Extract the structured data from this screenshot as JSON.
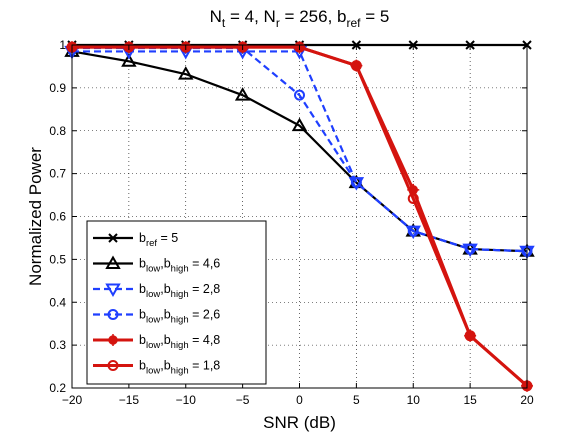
{
  "chart_data": {
    "type": "line",
    "title": {
      "parts": [
        {
          "text": "N",
          "sub": "t",
          "after": " = 4, "
        },
        {
          "text": "N",
          "sub": "r",
          "after": " = 256, "
        },
        {
          "text": "b",
          "sub": "ref",
          "after": " = 5"
        }
      ]
    },
    "xlabel": "SNR (dB)",
    "ylabel": "Normalized Power",
    "xlim": [
      -20,
      20
    ],
    "ylim": [
      0.2,
      1.0
    ],
    "x_ticks": [
      -20,
      -15,
      -10,
      -5,
      0,
      5,
      10,
      15,
      20
    ],
    "y_ticks": [
      0.2,
      0.3,
      0.4,
      0.5,
      0.6,
      0.7,
      0.8,
      0.9,
      1
    ],
    "x_tick_labels": [
      "−20",
      "−15",
      "−10",
      "−5",
      "0",
      "5",
      "10",
      "15",
      "20"
    ],
    "y_tick_labels": [
      "0.2",
      "0.3",
      "0.4",
      "0.5",
      "0.6",
      "0.7",
      "0.8",
      "0.9",
      "1"
    ],
    "grid": true,
    "legend_position": "bottom-left",
    "x": [
      -20,
      -15,
      -10,
      -5,
      0,
      5,
      10,
      15,
      20
    ],
    "series": [
      {
        "label": {
          "base": "b",
          "sub": "ref",
          "rest": " = 5"
        },
        "color": "#000000",
        "dash": "solid",
        "marker": "x",
        "values": [
          1.0,
          1.0,
          1.0,
          1.0,
          1.0,
          1.0,
          1.0,
          1.0,
          1.0
        ]
      },
      {
        "label": {
          "base": "b",
          "sub": "low",
          "mid": ",b",
          "sub2": "high",
          "rest": " = 4,6"
        },
        "color": "#000000",
        "dash": "solid",
        "marker": "triangle-up",
        "values": [
          0.985,
          0.962,
          0.932,
          0.883,
          0.812,
          0.679,
          0.566,
          0.524,
          0.519
        ]
      },
      {
        "label": {
          "base": "b",
          "sub": "low",
          "mid": ",b",
          "sub2": "high",
          "rest": " = 2,8"
        },
        "color": "#1f3fff",
        "dash": "dashed",
        "marker": "triangle-down",
        "values": [
          0.985,
          0.985,
          0.985,
          0.985,
          0.985,
          0.679,
          0.566,
          0.524,
          0.519
        ]
      },
      {
        "label": {
          "base": "b",
          "sub": "low",
          "mid": ",b",
          "sub2": "high",
          "rest": " = 2,6"
        },
        "color": "#1f3fff",
        "dash": "dashed",
        "marker": "circle",
        "values": [
          0.993,
          0.993,
          0.993,
          0.993,
          0.883,
          0.679,
          0.566,
          0.524,
          0.519
        ]
      },
      {
        "label": {
          "base": "b",
          "sub": "low",
          "mid": ",b",
          "sub2": "high",
          "rest": " = 4,8"
        },
        "color": "#d4140f",
        "dash": "solid",
        "marker": "star",
        "values": [
          0.995,
          0.995,
          0.995,
          0.995,
          0.995,
          0.952,
          0.662,
          0.322,
          0.205
        ]
      },
      {
        "label": {
          "base": "b",
          "sub": "low",
          "mid": ",b",
          "sub2": "high",
          "rest": " = 1,8"
        },
        "color": "#d4140f",
        "dash": "solid",
        "marker": "circle",
        "values": [
          0.995,
          0.995,
          0.995,
          0.995,
          0.995,
          0.952,
          0.642,
          0.322,
          0.205
        ]
      }
    ]
  }
}
